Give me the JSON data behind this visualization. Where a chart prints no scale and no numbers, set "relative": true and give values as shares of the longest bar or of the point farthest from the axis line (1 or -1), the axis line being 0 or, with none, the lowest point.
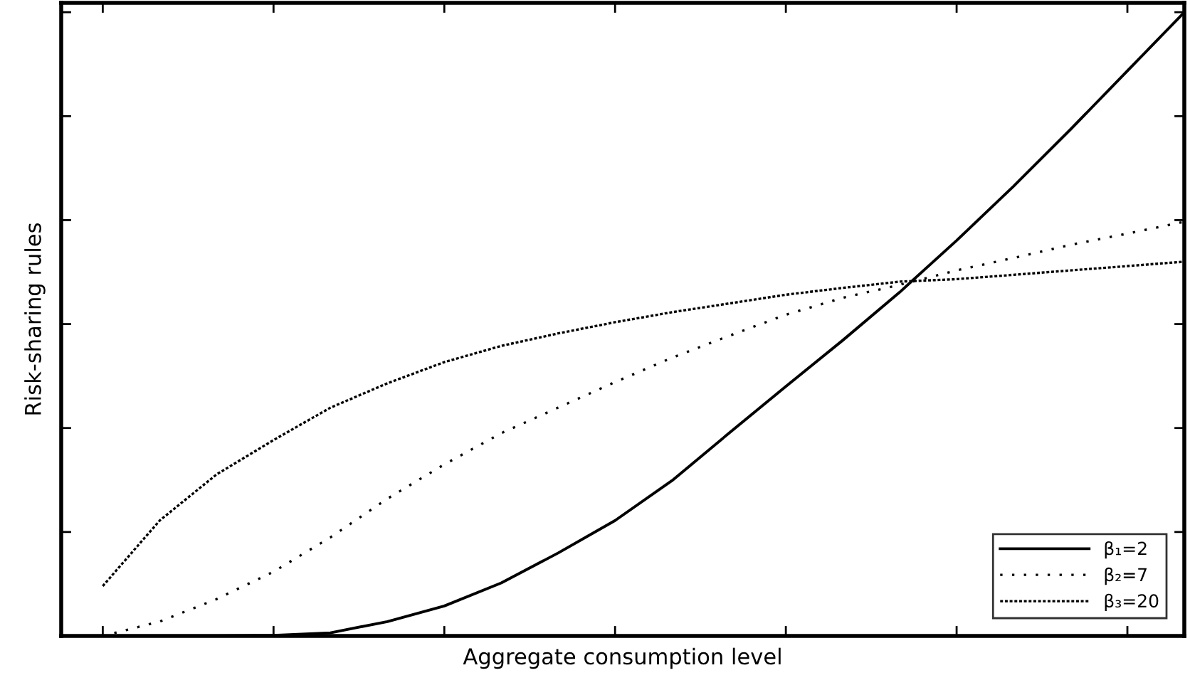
{
  "chart_data": {
    "type": "line",
    "relative": true,
    "xlabel": "Aggregate consumption level",
    "ylabel": "Risk-sharing rules",
    "categories": [
      null,
      null,
      null,
      null,
      null,
      null,
      null,
      null,
      null,
      null,
      null,
      null,
      null,
      null,
      null,
      null,
      null,
      null,
      null,
      null
    ],
    "series": [
      {
        "name": "β₁=2",
        "color": "#000000",
        "line_style": "solid",
        "values": [
          0,
          0,
          0,
          0.001,
          0.005,
          0.023,
          0.048,
          0.085,
          0.133,
          0.185,
          0.249,
          0.325,
          0.4,
          0.474,
          0.551,
          0.634,
          0.721,
          0.812,
          0.906,
          1.0
        ]
      },
      {
        "name": "β₂=7",
        "color": "#000000",
        "line_style": "dotted",
        "values": [
          0,
          0.023,
          0.059,
          0.103,
          0.158,
          0.22,
          0.275,
          0.325,
          0.366,
          0.407,
          0.446,
          0.481,
          0.515,
          0.542,
          0.563,
          0.586,
          0.606,
          0.627,
          0.645,
          0.664
        ]
      },
      {
        "name": "β₃=20",
        "color": "#000000",
        "line_style": "dashed",
        "values": [
          0.08,
          0.185,
          0.259,
          0.314,
          0.366,
          0.405,
          0.439,
          0.465,
          0.485,
          0.503,
          0.519,
          0.533,
          0.547,
          0.558,
          0.568,
          0.572,
          0.579,
          0.586,
          0.593,
          0.6
        ]
      }
    ],
    "legend": "bottom right",
    "grid": false
  }
}
